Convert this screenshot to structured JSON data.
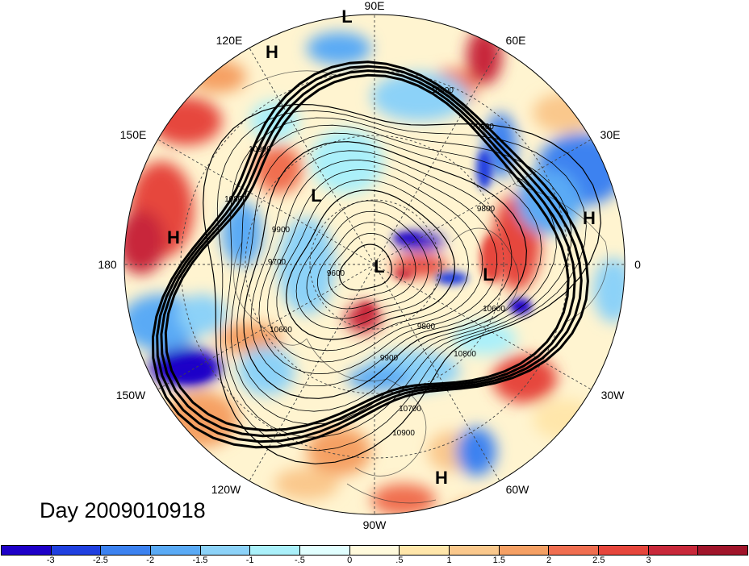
{
  "map": {
    "projection": "north-polar-stereographic",
    "title_text": "Day 2009010918",
    "longitude_labels": {
      "lon_90E": "90E",
      "lon_60E": "60E",
      "lon_120E": "120E",
      "lon_30E": "30E",
      "lon_150E": "150E",
      "lon_0": "0",
      "lon_180": "180",
      "lon_30W": "30W",
      "lon_150W": "150W",
      "lon_60W": "60W",
      "lon_120W": "120W",
      "lon_90W": "90W"
    },
    "pressure_centers": [
      {
        "text": "L",
        "location": "north edge"
      },
      {
        "text": "H",
        "location": "near 120E"
      },
      {
        "text": "L",
        "location": "north Asia"
      },
      {
        "text": "H",
        "location": "north Pacific"
      },
      {
        "text": "L",
        "location": "pole"
      },
      {
        "text": "L",
        "location": "Scandinavia"
      },
      {
        "text": "H",
        "location": "Europe"
      },
      {
        "text": "H",
        "location": "subtropical Atlantic"
      }
    ],
    "contour_labels": [
      "10900",
      "10800",
      "10900",
      "10800",
      "9900",
      "9700",
      "9600",
      "10600",
      "10600",
      "9900",
      "9800",
      "10800",
      "10700",
      "10900",
      "9800"
    ],
    "colors": {
      "land_outline": "#333333",
      "contour": "#000000",
      "graticule": "#555555"
    }
  },
  "colorbar": {
    "colors": [
      "#1e00c8",
      "#2040e0",
      "#3c82f0",
      "#5aaaf5",
      "#8cd2f8",
      "#aaf0fa",
      "#e1ffff",
      "#fffadc",
      "#ffe6aa",
      "#fac88c",
      "#f5a064",
      "#f06e50",
      "#e6463c",
      "#c8283a",
      "#a0142a"
    ],
    "tick_labels": [
      "-3",
      "-2.5",
      "-2",
      "-1.5",
      "-1",
      "-.5",
      "0",
      ".5",
      "1",
      "1.5",
      "2",
      "2.5",
      "3"
    ]
  }
}
